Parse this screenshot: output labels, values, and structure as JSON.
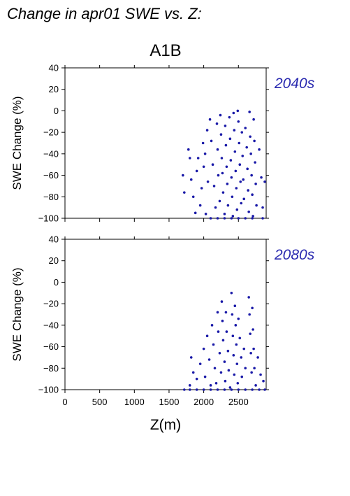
{
  "header": {
    "title": "Change in apr01 SWE vs. Z:",
    "scenario": "A1B"
  },
  "colors": {
    "points": "#1a1aa8",
    "period_label": "#2a2ab0",
    "axes": "#000000"
  },
  "chart_data": [
    {
      "type": "scatter",
      "title": "",
      "period": "2040s",
      "xlabel": "Z(m)",
      "ylabel": "SWE Change (%)",
      "xlim": [
        0,
        2900
      ],
      "ylim": [
        -100,
        40
      ],
      "xticks": [
        0,
        500,
        1000,
        1500,
        2000,
        2500
      ],
      "yticks": [
        40,
        20,
        0,
        -20,
        -40,
        -60,
        -80,
        -100
      ],
      "grid": false,
      "series": [
        {
          "points": [
            [
              1700,
              -60
            ],
            [
              1720,
              -76
            ],
            [
              1780,
              -36
            ],
            [
              1800,
              -44
            ],
            [
              1820,
              -64
            ],
            [
              1850,
              -80
            ],
            [
              1880,
              -95
            ],
            [
              1900,
              -56
            ],
            [
              1920,
              -44
            ],
            [
              1950,
              -88
            ],
            [
              1970,
              -72
            ],
            [
              1990,
              -30
            ],
            [
              2000,
              -52
            ],
            [
              2020,
              -40
            ],
            [
              2030,
              -96
            ],
            [
              2050,
              -18
            ],
            [
              2060,
              -66
            ],
            [
              2090,
              -8
            ],
            [
              2110,
              -28
            ],
            [
              2130,
              -50
            ],
            [
              2150,
              -70
            ],
            [
              2170,
              -90
            ],
            [
              2190,
              -12
            ],
            [
              2200,
              -36
            ],
            [
              2210,
              -60
            ],
            [
              2230,
              -84
            ],
            [
              2240,
              -4
            ],
            [
              2250,
              -22
            ],
            [
              2260,
              -44
            ],
            [
              2270,
              -58
            ],
            [
              2280,
              -76
            ],
            [
              2300,
              -96
            ],
            [
              2310,
              -14
            ],
            [
              2320,
              -32
            ],
            [
              2330,
              -52
            ],
            [
              2340,
              -68
            ],
            [
              2350,
              -88
            ],
            [
              2370,
              -6
            ],
            [
              2380,
              -26
            ],
            [
              2390,
              -46
            ],
            [
              2400,
              -62
            ],
            [
              2410,
              -80
            ],
            [
              2420,
              -98
            ],
            [
              2430,
              -2
            ],
            [
              2440,
              -18
            ],
            [
              2450,
              -38
            ],
            [
              2460,
              -56
            ],
            [
              2470,
              -72
            ],
            [
              2480,
              -92
            ],
            [
              2490,
              0
            ],
            [
              2500,
              -10
            ],
            [
              2510,
              -30
            ],
            [
              2520,
              -50
            ],
            [
              2530,
              -66
            ],
            [
              2540,
              -86
            ],
            [
              2550,
              -20
            ],
            [
              2560,
              -42
            ],
            [
              2570,
              -64
            ],
            [
              2580,
              -82
            ],
            [
              2600,
              -16
            ],
            [
              2620,
              -34
            ],
            [
              2630,
              -54
            ],
            [
              2640,
              -74
            ],
            [
              2650,
              -94
            ],
            [
              2660,
              -1
            ],
            [
              2670,
              -24
            ],
            [
              2680,
              -40
            ],
            [
              2690,
              -60
            ],
            [
              2700,
              -78
            ],
            [
              2710,
              -98
            ],
            [
              2720,
              -8
            ],
            [
              2730,
              -28
            ],
            [
              2740,
              -48
            ],
            [
              2750,
              -68
            ],
            [
              2760,
              -88
            ],
            [
              2800,
              -36
            ],
            [
              2830,
              -62
            ],
            [
              2850,
              -90
            ],
            [
              2880,
              -66
            ],
            [
              2100,
              -100
            ],
            [
              2200,
              -100
            ],
            [
              2300,
              -100
            ],
            [
              2400,
              -100
            ],
            [
              2500,
              -100
            ],
            [
              2600,
              -100
            ],
            [
              2700,
              -100
            ],
            [
              2850,
              -100
            ]
          ]
        }
      ]
    },
    {
      "type": "scatter",
      "title": "",
      "period": "2080s",
      "xlabel": "Z(m)",
      "ylabel": "SWE Change (%)",
      "xlim": [
        0,
        2900
      ],
      "ylim": [
        -100,
        40
      ],
      "xticks": [
        0,
        500,
        1000,
        1500,
        2000,
        2500
      ],
      "yticks": [
        40,
        20,
        0,
        -20,
        -40,
        -60,
        -80,
        -100
      ],
      "grid": false,
      "series": [
        {
          "points": [
            [
              1720,
              -100
            ],
            [
              1800,
              -96
            ],
            [
              1820,
              -70
            ],
            [
              1850,
              -84
            ],
            [
              1900,
              -90
            ],
            [
              1950,
              -76
            ],
            [
              2000,
              -62
            ],
            [
              2020,
              -88
            ],
            [
              2050,
              -50
            ],
            [
              2080,
              -72
            ],
            [
              2100,
              -96
            ],
            [
              2120,
              -40
            ],
            [
              2140,
              -58
            ],
            [
              2160,
              -80
            ],
            [
              2180,
              -94
            ],
            [
              2200,
              -28
            ],
            [
              2210,
              -46
            ],
            [
              2230,
              -66
            ],
            [
              2250,
              -84
            ],
            [
              2260,
              -18
            ],
            [
              2270,
              -36
            ],
            [
              2280,
              -54
            ],
            [
              2300,
              -74
            ],
            [
              2310,
              -92
            ],
            [
              2320,
              -28
            ],
            [
              2330,
              -46
            ],
            [
              2350,
              -64
            ],
            [
              2360,
              -82
            ],
            [
              2380,
              -98
            ],
            [
              2400,
              -10
            ],
            [
              2410,
              -30
            ],
            [
              2420,
              -50
            ],
            [
              2430,
              -68
            ],
            [
              2440,
              -86
            ],
            [
              2450,
              -22
            ],
            [
              2460,
              -40
            ],
            [
              2470,
              -58
            ],
            [
              2480,
              -76
            ],
            [
              2490,
              -94
            ],
            [
              2500,
              -34
            ],
            [
              2520,
              -52
            ],
            [
              2540,
              -70
            ],
            [
              2550,
              -88
            ],
            [
              2580,
              -62
            ],
            [
              2600,
              -80
            ],
            [
              2650,
              -14
            ],
            [
              2660,
              -30
            ],
            [
              2670,
              -48
            ],
            [
              2680,
              -66
            ],
            [
              2690,
              -84
            ],
            [
              2700,
              -24
            ],
            [
              2710,
              -44
            ],
            [
              2720,
              -62
            ],
            [
              2730,
              -80
            ],
            [
              2750,
              -96
            ],
            [
              2780,
              -70
            ],
            [
              2820,
              -86
            ],
            [
              2860,
              -92
            ],
            [
              1800,
              -100
            ],
            [
              1900,
              -100
            ],
            [
              2000,
              -100
            ],
            [
              2100,
              -100
            ],
            [
              2200,
              -100
            ],
            [
              2300,
              -100
            ],
            [
              2400,
              -100
            ],
            [
              2500,
              -100
            ],
            [
              2600,
              -100
            ],
            [
              2700,
              -100
            ],
            [
              2800,
              -100
            ],
            [
              2880,
              -100
            ]
          ]
        }
      ]
    }
  ]
}
